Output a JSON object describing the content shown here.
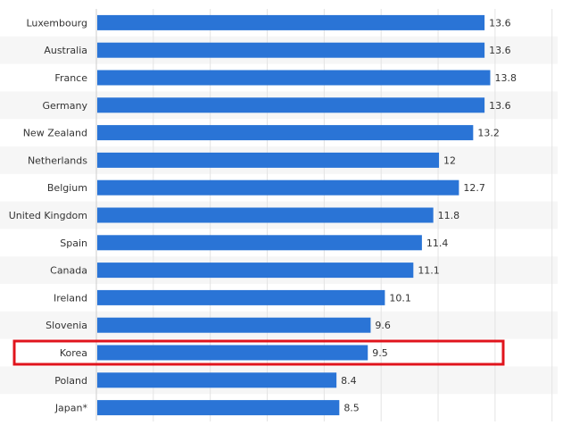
{
  "chart_data": {
    "type": "bar",
    "orientation": "horizontal",
    "categories": [
      "Luxembourg",
      "Australia",
      "France",
      "Germany",
      "New Zealand",
      "Netherlands",
      "Belgium",
      "United Kingdom",
      "Spain",
      "Canada",
      "Ireland",
      "Slovenia",
      "Korea",
      "Poland",
      "Japan*"
    ],
    "values": [
      13.6,
      13.6,
      13.8,
      13.6,
      13.2,
      12,
      12.7,
      11.8,
      11.4,
      11.1,
      10.1,
      9.6,
      9.5,
      8.4,
      8.5
    ],
    "value_labels": [
      "13.6",
      "13.6",
      "13.8",
      "13.6",
      "13.2",
      "12",
      "12.7",
      "11.8",
      "11.4",
      "11.1",
      "10.1",
      "9.6",
      "9.5",
      "8.4",
      "8.5"
    ],
    "highlighted": "Korea",
    "xlim": [
      0,
      16
    ],
    "grid": true,
    "colors": {
      "bar": "#2a74d6",
      "highlight_box": "#e0141c",
      "grid": "#e3e3e3",
      "band": "#f6f6f6",
      "axis": "#cccccc"
    }
  }
}
